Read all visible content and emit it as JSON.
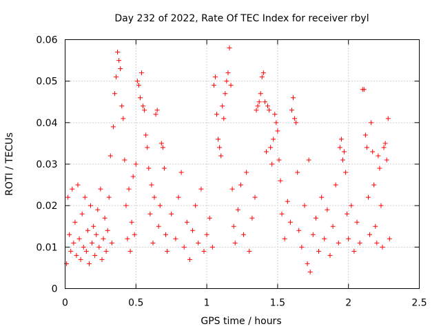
{
  "chart_data": {
    "type": "scatter",
    "title": "Day 232 of 2022, Rate Of TEC Index for receiver rbyl",
    "xlabel": "GPS time / hours",
    "ylabel": "ROTI / TECUs",
    "xlim": [
      0,
      2.5
    ],
    "ylim": [
      0,
      0.06
    ],
    "xticks": [
      0,
      0.5,
      1,
      1.5,
      2,
      2.5
    ],
    "xtick_labels": [
      "0",
      "0.5",
      "1",
      "1.5",
      "2",
      "2.5"
    ],
    "yticks": [
      0,
      0.01,
      0.02,
      0.03,
      0.04,
      0.05,
      0.06
    ],
    "ytick_labels": [
      "0",
      "0.01",
      "0.02",
      "0.03",
      "0.04",
      "0.05",
      "0.06"
    ],
    "grid": true,
    "marker": "plus",
    "color": "#ff0000",
    "series": [
      {
        "name": "ROTI",
        "points": [
          [
            0.01,
            0.006
          ],
          [
            0.02,
            0.022
          ],
          [
            0.03,
            0.013
          ],
          [
            0.04,
            0.009
          ],
          [
            0.05,
            0.024
          ],
          [
            0.06,
            0.011
          ],
          [
            0.07,
            0.016
          ],
          [
            0.08,
            0.008
          ],
          [
            0.09,
            0.025
          ],
          [
            0.1,
            0.012
          ],
          [
            0.11,
            0.007
          ],
          [
            0.12,
            0.018
          ],
          [
            0.13,
            0.01
          ],
          [
            0.14,
            0.022
          ],
          [
            0.15,
            0.009
          ],
          [
            0.16,
            0.014
          ],
          [
            0.17,
            0.006
          ],
          [
            0.18,
            0.02
          ],
          [
            0.19,
            0.011
          ],
          [
            0.2,
            0.015
          ],
          [
            0.21,
            0.008
          ],
          [
            0.22,
            0.013
          ],
          [
            0.23,
            0.019
          ],
          [
            0.24,
            0.01
          ],
          [
            0.25,
            0.024
          ],
          [
            0.26,
            0.007
          ],
          [
            0.27,
            0.012
          ],
          [
            0.28,
            0.017
          ],
          [
            0.29,
            0.009
          ],
          [
            0.3,
            0.014
          ],
          [
            0.31,
            0.022
          ],
          [
            0.32,
            0.032
          ],
          [
            0.33,
            0.011
          ],
          [
            0.34,
            0.039
          ],
          [
            0.35,
            0.047
          ],
          [
            0.36,
            0.051
          ],
          [
            0.37,
            0.057
          ],
          [
            0.38,
            0.055
          ],
          [
            0.39,
            0.053
          ],
          [
            0.4,
            0.044
          ],
          [
            0.41,
            0.041
          ],
          [
            0.42,
            0.031
          ],
          [
            0.43,
            0.02
          ],
          [
            0.44,
            0.012
          ],
          [
            0.45,
            0.024
          ],
          [
            0.46,
            0.009
          ],
          [
            0.47,
            0.016
          ],
          [
            0.48,
            0.027
          ],
          [
            0.49,
            0.013
          ],
          [
            0.5,
            0.03
          ],
          [
            0.51,
            0.05
          ],
          [
            0.52,
            0.049
          ],
          [
            0.53,
            0.046
          ],
          [
            0.54,
            0.052
          ],
          [
            0.55,
            0.044
          ],
          [
            0.56,
            0.043
          ],
          [
            0.57,
            0.037
          ],
          [
            0.58,
            0.034
          ],
          [
            0.59,
            0.029
          ],
          [
            0.6,
            0.018
          ],
          [
            0.61,
            0.025
          ],
          [
            0.62,
            0.011
          ],
          [
            0.63,
            0.022
          ],
          [
            0.64,
            0.042
          ],
          [
            0.65,
            0.043
          ],
          [
            0.66,
            0.015
          ],
          [
            0.67,
            0.02
          ],
          [
            0.68,
            0.035
          ],
          [
            0.69,
            0.034
          ],
          [
            0.7,
            0.029
          ],
          [
            0.71,
            0.013
          ],
          [
            0.72,
            0.009
          ],
          [
            0.75,
            0.018
          ],
          [
            0.78,
            0.012
          ],
          [
            0.8,
            0.022
          ],
          [
            0.82,
            0.028
          ],
          [
            0.84,
            0.01
          ],
          [
            0.86,
            0.016
          ],
          [
            0.88,
            0.007
          ],
          [
            0.9,
            0.014
          ],
          [
            0.92,
            0.02
          ],
          [
            0.94,
            0.011
          ],
          [
            0.96,
            0.024
          ],
          [
            0.98,
            0.009
          ],
          [
            1.0,
            0.013
          ],
          [
            1.02,
            0.017
          ],
          [
            1.04,
            0.01
          ],
          [
            1.05,
            0.049
          ],
          [
            1.06,
            0.051
          ],
          [
            1.07,
            0.042
          ],
          [
            1.08,
            0.036
          ],
          [
            1.09,
            0.034
          ],
          [
            1.1,
            0.032
          ],
          [
            1.11,
            0.044
          ],
          [
            1.12,
            0.041
          ],
          [
            1.13,
            0.047
          ],
          [
            1.14,
            0.05
          ],
          [
            1.15,
            0.052
          ],
          [
            1.16,
            0.058
          ],
          [
            1.17,
            0.049
          ],
          [
            1.18,
            0.024
          ],
          [
            1.19,
            0.015
          ],
          [
            1.2,
            0.011
          ],
          [
            1.22,
            0.019
          ],
          [
            1.24,
            0.025
          ],
          [
            1.26,
            0.013
          ],
          [
            1.28,
            0.028
          ],
          [
            1.3,
            0.009
          ],
          [
            1.32,
            0.017
          ],
          [
            1.34,
            0.022
          ],
          [
            1.35,
            0.043
          ],
          [
            1.36,
            0.044
          ],
          [
            1.37,
            0.045
          ],
          [
            1.38,
            0.047
          ],
          [
            1.39,
            0.051
          ],
          [
            1.4,
            0.052
          ],
          [
            1.41,
            0.045
          ],
          [
            1.42,
            0.033
          ],
          [
            1.43,
            0.044
          ],
          [
            1.44,
            0.043
          ],
          [
            1.45,
            0.034
          ],
          [
            1.46,
            0.03
          ],
          [
            1.47,
            0.036
          ],
          [
            1.48,
            0.042
          ],
          [
            1.49,
            0.04
          ],
          [
            1.5,
            0.038
          ],
          [
            1.51,
            0.031
          ],
          [
            1.52,
            0.026
          ],
          [
            1.53,
            0.018
          ],
          [
            1.55,
            0.012
          ],
          [
            1.57,
            0.021
          ],
          [
            1.59,
            0.016
          ],
          [
            1.6,
            0.043
          ],
          [
            1.61,
            0.046
          ],
          [
            1.62,
            0.041
          ],
          [
            1.63,
            0.04
          ],
          [
            1.64,
            0.028
          ],
          [
            1.65,
            0.014
          ],
          [
            1.67,
            0.01
          ],
          [
            1.69,
            0.02
          ],
          [
            1.71,
            0.006
          ],
          [
            1.72,
            0.031
          ],
          [
            1.73,
            0.004
          ],
          [
            1.75,
            0.013
          ],
          [
            1.77,
            0.017
          ],
          [
            1.79,
            0.009
          ],
          [
            1.81,
            0.022
          ],
          [
            1.83,
            0.012
          ],
          [
            1.85,
            0.019
          ],
          [
            1.87,
            0.008
          ],
          [
            1.89,
            0.015
          ],
          [
            1.91,
            0.025
          ],
          [
            1.93,
            0.011
          ],
          [
            1.94,
            0.034
          ],
          [
            1.95,
            0.036
          ],
          [
            1.96,
            0.031
          ],
          [
            1.97,
            0.033
          ],
          [
            1.98,
            0.028
          ],
          [
            1.99,
            0.018
          ],
          [
            2.0,
            0.012
          ],
          [
            2.02,
            0.02
          ],
          [
            2.04,
            0.009
          ],
          [
            2.06,
            0.016
          ],
          [
            2.08,
            0.011
          ],
          [
            2.1,
            0.048
          ],
          [
            2.11,
            0.048
          ],
          [
            2.12,
            0.037
          ],
          [
            2.13,
            0.034
          ],
          [
            2.14,
            0.022
          ],
          [
            2.15,
            0.013
          ],
          [
            2.16,
            0.04
          ],
          [
            2.17,
            0.033
          ],
          [
            2.18,
            0.025
          ],
          [
            2.19,
            0.015
          ],
          [
            2.2,
            0.011
          ],
          [
            2.21,
            0.032
          ],
          [
            2.22,
            0.029
          ],
          [
            2.23,
            0.02
          ],
          [
            2.24,
            0.01
          ],
          [
            2.25,
            0.034
          ],
          [
            2.26,
            0.035
          ],
          [
            2.27,
            0.031
          ],
          [
            2.28,
            0.041
          ],
          [
            2.29,
            0.012
          ]
        ]
      }
    ]
  }
}
